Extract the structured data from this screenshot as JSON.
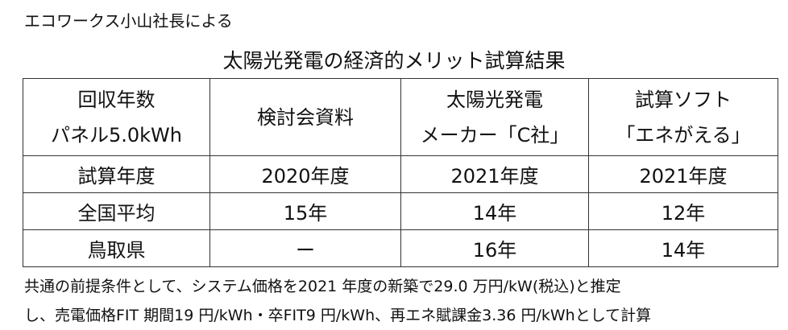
{
  "header": {
    "note": "エコワークス小山社長による",
    "title": "太陽光発電の経済的メリット試算結果"
  },
  "table": {
    "columns": [
      [
        "回収年数",
        "パネル5.0kWh"
      ],
      [
        "検討会資料"
      ],
      [
        "太陽光発電",
        "メーカー「C社」"
      ],
      [
        "試算ソフト",
        "「エネがえる」"
      ]
    ],
    "rows": [
      [
        "試算年度",
        "2020年度",
        "2021年度",
        "2021年度"
      ],
      [
        "全国平均",
        "15年",
        "14年",
        "12年"
      ],
      [
        "鳥取県",
        "ー",
        "16年",
        "14年"
      ]
    ]
  },
  "footer": {
    "lines": [
      "共通の前提条件として、システム価格を2021 年度の新築で29.0 万円/kW(税込)と推定",
      "し、売電価格FIT 期間19 円/kWh・卒FIT9 円/kWh、再エネ賦課金3.36 円/kWhとして計算"
    ]
  }
}
